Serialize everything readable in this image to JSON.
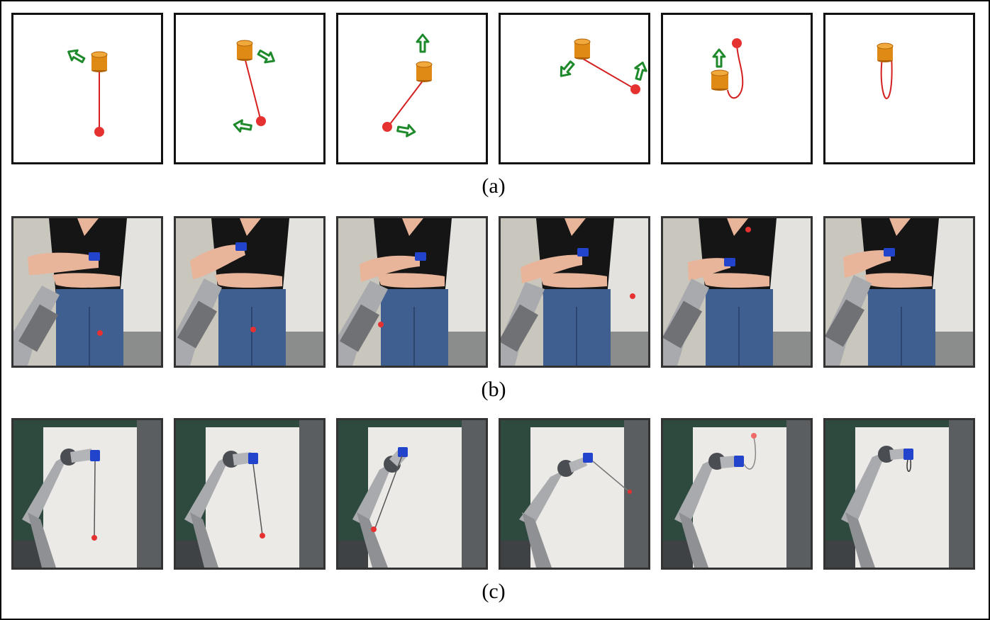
{
  "captions": {
    "a": "(a)",
    "b": "(b)",
    "c": "(c)"
  },
  "colors": {
    "cup": "#e08a16",
    "cup_dark": "#b06208",
    "ball": "#e63131",
    "string_sim": "#d42020",
    "arrow": "#1f8a2c",
    "robot_cup": "#2244cc",
    "wall": "#2e4a3e",
    "board": "#eceae6",
    "shirt": "#151515",
    "jeans": "#3f5f90",
    "skin": "#e8b49a",
    "robot_metal": "#a8aaae"
  },
  "icons": {
    "motion_arrow": "hollow-arrow-icon",
    "cup": "cup-icon",
    "ball": "ball-icon"
  },
  "rows": {
    "a": {
      "kind": "simulation",
      "frames": 6
    },
    "b": {
      "kind": "human-demonstration-photo",
      "frames": 6
    },
    "c": {
      "kind": "robot-execution-photo",
      "frames": 6
    }
  }
}
